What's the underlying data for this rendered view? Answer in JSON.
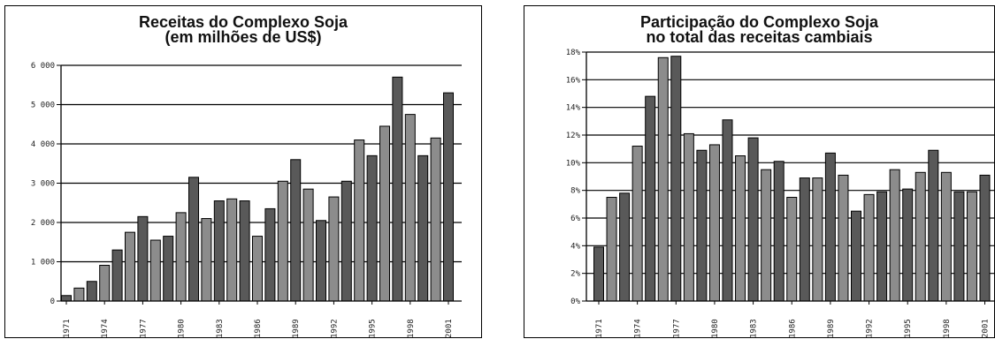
{
  "chart_data": [
    {
      "type": "bar",
      "title": "Receitas do Complexo Soja",
      "subtitle": "(em milhões de US$)",
      "ylim": [
        0,
        6000
      ],
      "yticks": [
        "0",
        "1 000",
        "2 000",
        "3 000",
        "4 000",
        "5 000",
        "6 000"
      ],
      "x_tick_labels": [
        "1971",
        "1974",
        "1977",
        "1980",
        "1983",
        "1986",
        "1989",
        "1992",
        "1995",
        "1998",
        "2001"
      ],
      "categories": [
        "1971",
        "1972",
        "1973",
        "1974",
        "1975",
        "1976",
        "1977",
        "1978",
        "1979",
        "1980",
        "1981",
        "1982",
        "1983",
        "1984",
        "1985",
        "1986",
        "1987",
        "1988",
        "1989",
        "1990",
        "1991",
        "1992",
        "1993",
        "1994",
        "1995",
        "1996",
        "1997",
        "1998",
        "1999",
        "2000",
        "2001"
      ],
      "values": [
        140,
        330,
        500,
        910,
        1300,
        1750,
        2150,
        1550,
        1650,
        2250,
        3150,
        2100,
        2550,
        2600,
        2550,
        1650,
        2350,
        3050,
        3600,
        2850,
        2050,
        2650,
        3050,
        4100,
        3700,
        4450,
        5700,
        4750,
        3700,
        4150,
        5300
      ],
      "grid": "horizontal",
      "colors": [
        "#595959",
        "#8c8c8c"
      ]
    },
    {
      "type": "bar",
      "title": "Participação do Complexo Soja",
      "subtitle": "no total das receitas cambiais",
      "ylim": [
        0,
        18
      ],
      "yticks": [
        "0%",
        "2%",
        "4%",
        "6%",
        "8%",
        "10%",
        "12%",
        "14%",
        "16%",
        "18%"
      ],
      "x_tick_labels": [
        "1971",
        "1974",
        "1977",
        "1980",
        "1983",
        "1986",
        "1989",
        "1992",
        "1995",
        "1998",
        "2001"
      ],
      "categories": [
        "1971",
        "1972",
        "1973",
        "1974",
        "1975",
        "1976",
        "1977",
        "1978",
        "1979",
        "1980",
        "1981",
        "1982",
        "1983",
        "1984",
        "1985",
        "1986",
        "1987",
        "1988",
        "1989",
        "1990",
        "1991",
        "1992",
        "1993",
        "1994",
        "1995",
        "1996",
        "1997",
        "1998",
        "1999",
        "2000",
        "2001"
      ],
      "values": [
        3.9,
        7.5,
        7.8,
        11.2,
        14.8,
        17.6,
        17.7,
        12.1,
        10.9,
        11.3,
        13.1,
        10.5,
        11.8,
        9.5,
        10.1,
        7.5,
        8.9,
        8.9,
        10.7,
        9.1,
        6.5,
        7.7,
        7.9,
        9.5,
        8.1,
        9.3,
        10.9,
        9.3,
        7.9,
        7.9,
        9.1
      ],
      "grid": "horizontal",
      "colors": [
        "#595959",
        "#8c8c8c"
      ]
    }
  ]
}
